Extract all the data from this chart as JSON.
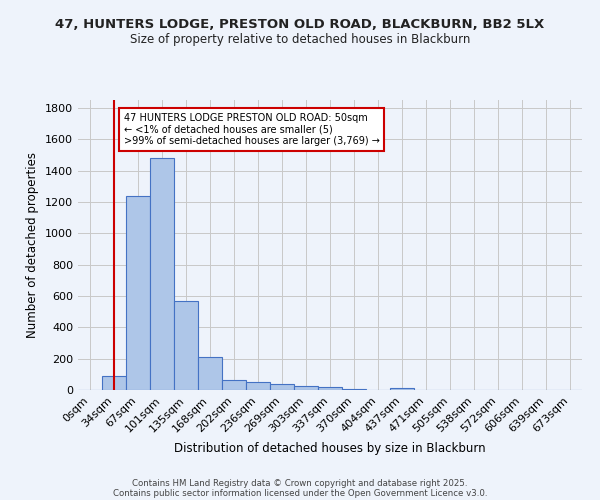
{
  "title": "47, HUNTERS LODGE, PRESTON OLD ROAD, BLACKBURN, BB2 5LX",
  "subtitle": "Size of property relative to detached houses in Blackburn",
  "xlabel": "Distribution of detached houses by size in Blackburn",
  "ylabel": "Number of detached properties",
  "bar_labels": [
    "0sqm",
    "34sqm",
    "67sqm",
    "101sqm",
    "135sqm",
    "168sqm",
    "202sqm",
    "236sqm",
    "269sqm",
    "303sqm",
    "337sqm",
    "370sqm",
    "404sqm",
    "437sqm",
    "471sqm",
    "505sqm",
    "538sqm",
    "572sqm",
    "606sqm",
    "639sqm",
    "673sqm"
  ],
  "bar_values": [
    0,
    90,
    1240,
    1480,
    565,
    210,
    65,
    48,
    38,
    28,
    20,
    8,
    3,
    10,
    0,
    0,
    0,
    0,
    0,
    0,
    0
  ],
  "bar_color": "#aec6e8",
  "bar_edge_color": "#4472c4",
  "background_color": "#eef3fb",
  "grid_color": "#c8c8c8",
  "red_line_x": 1.0,
  "annotation_text": "47 HUNTERS LODGE PRESTON OLD ROAD: 50sqm\n← <1% of detached houses are smaller (5)\n>99% of semi-detached houses are larger (3,769) →",
  "annotation_box_color": "#ffffff",
  "annotation_box_edge": "#cc0000",
  "ylim": [
    0,
    1850
  ],
  "yticks": [
    0,
    200,
    400,
    600,
    800,
    1000,
    1200,
    1400,
    1600,
    1800
  ],
  "footer_line1": "Contains HM Land Registry data © Crown copyright and database right 2025.",
  "footer_line2": "Contains public sector information licensed under the Open Government Licence v3.0."
}
